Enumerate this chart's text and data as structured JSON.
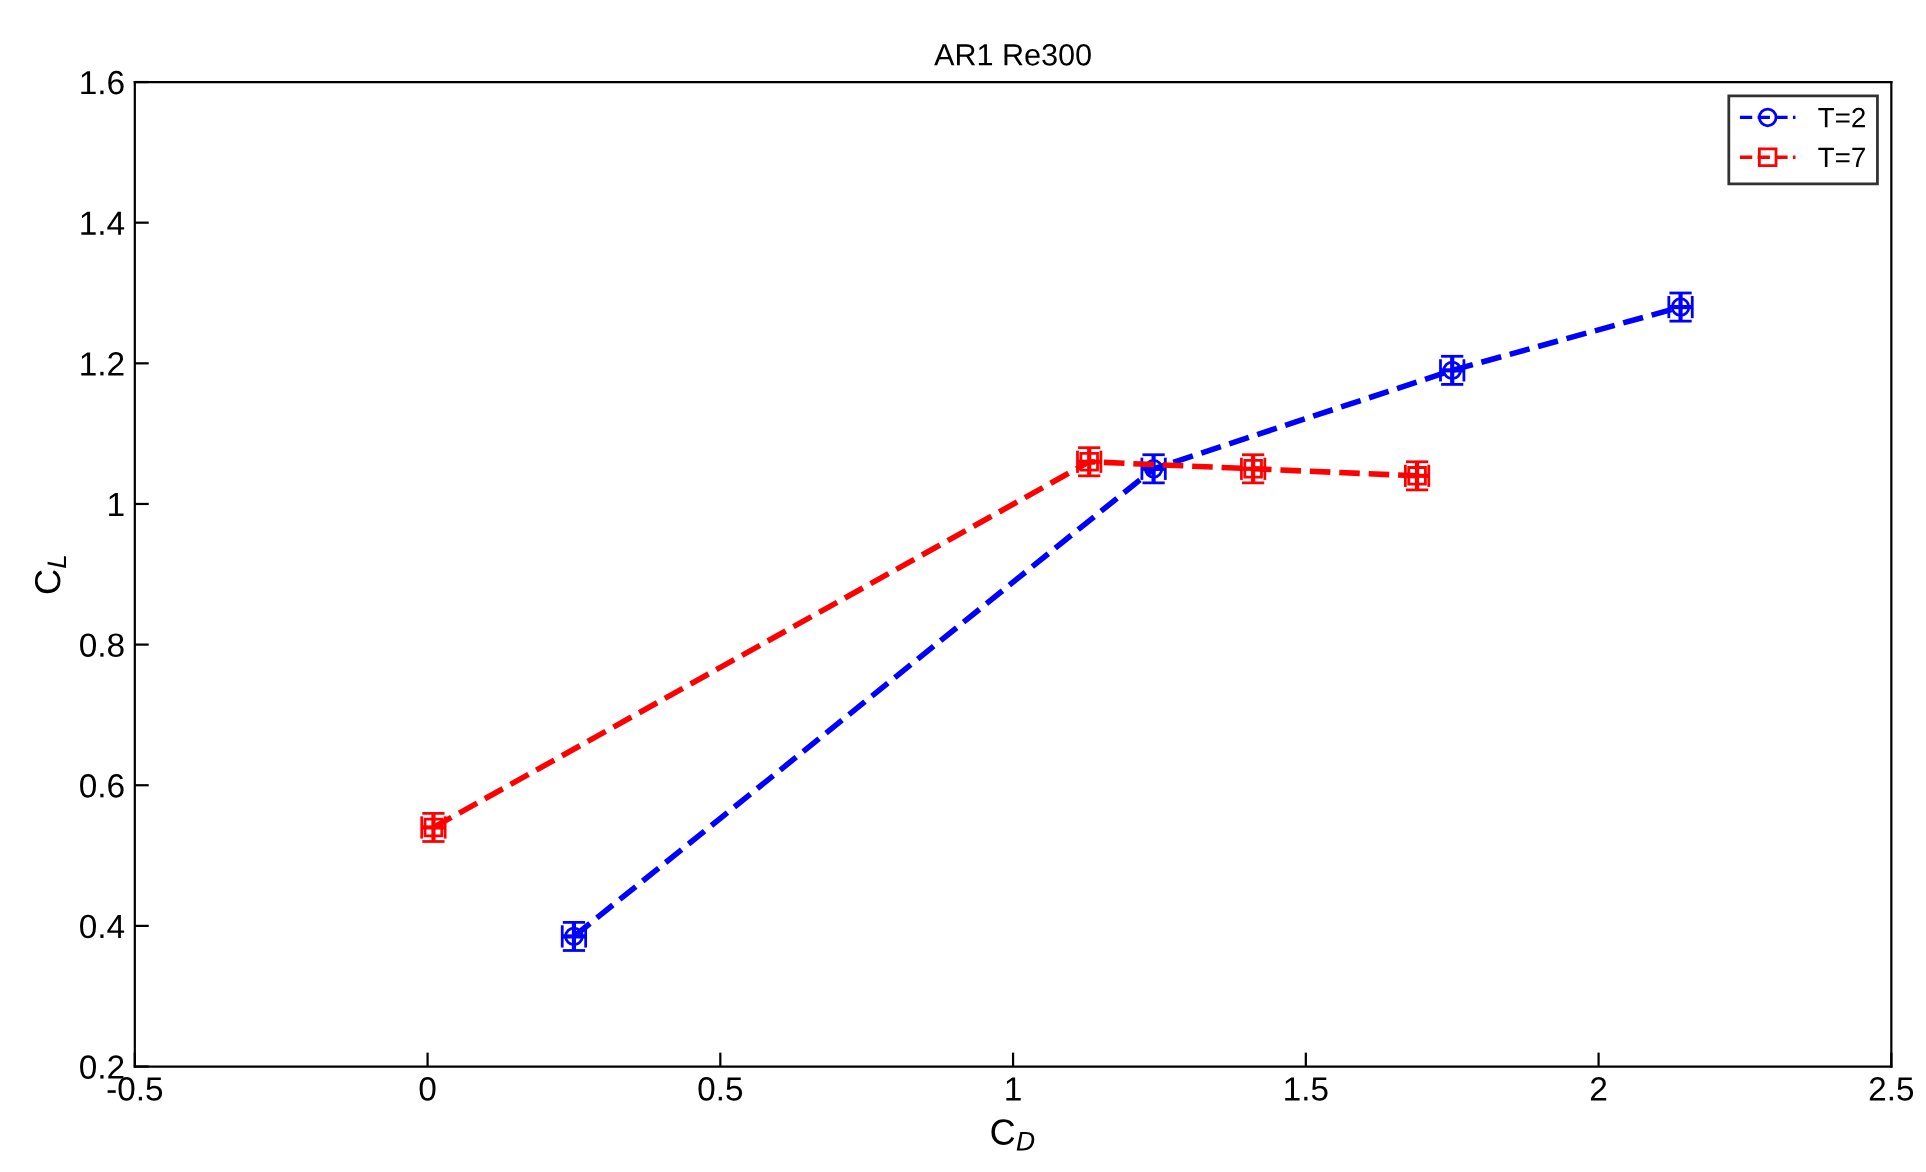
{
  "chart_data": {
    "type": "line",
    "title": "AR1 Re300",
    "xlabel": "C$_{D}$",
    "ylabel": "C$_{L}$",
    "xlim": [
      -0.5,
      2.5
    ],
    "xticks": [
      -0.5,
      0,
      0.5,
      1,
      1.5,
      2,
      2.5
    ],
    "ylim": [
      0.2,
      1.6
    ],
    "yticks": [
      0.2,
      0.4,
      0.6,
      0.8,
      1,
      1.2,
      1.4,
      1.6
    ],
    "grid": false,
    "legend": "top right",
    "line_style": "dashed",
    "series": [
      {
        "name": "T=2",
        "color": "#0000ff",
        "marker": "circle",
        "x": [
          0.25,
          1.24,
          1.75,
          2.14
        ],
        "values": [
          0.385,
          1.05,
          1.19,
          1.28
        ],
        "errors": [
          0.02,
          0.02,
          0.02,
          0.02
        ],
        "xerrors": [
          0.02,
          0.02,
          0.02,
          0.02
        ]
      },
      {
        "name": "T=7",
        "color": "#ff0000",
        "marker": "square",
        "x": [
          0.01,
          1.13,
          1.41,
          1.69
        ],
        "values": [
          0.54,
          1.06,
          1.05,
          1.04
        ],
        "errors": [
          0.02,
          0.02,
          0.02,
          0.02
        ],
        "xerrors": [
          0.02,
          0.02,
          0.02,
          0.02
        ]
      }
    ]
  }
}
